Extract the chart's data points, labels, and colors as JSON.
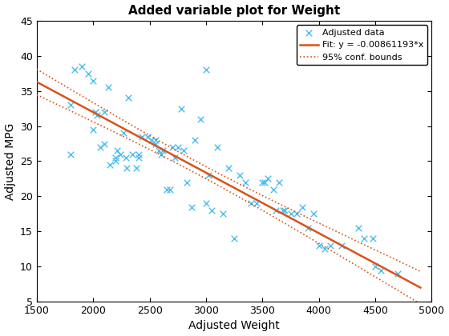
{
  "title": "Added variable plot for Weight",
  "xlabel": "Adjusted Weight",
  "ylabel": "Adjusted MPG",
  "slope": -0.00861193,
  "intercept": 48.5,
  "xlim": [
    1500,
    5000
  ],
  "ylim": [
    5,
    45
  ],
  "xticks": [
    1500,
    2000,
    2500,
    3000,
    3500,
    4000,
    4500,
    5000
  ],
  "yticks": [
    5,
    10,
    15,
    20,
    25,
    30,
    35,
    40,
    45
  ],
  "scatter_color": "#4dbeee",
  "fit_color": "#d95319",
  "conf_color": "#d95319",
  "legend_label_scatter": "Adjusted data",
  "legend_label_fit": "Fit: y = -0.00861193*x",
  "legend_label_conf": "95% conf. bounds",
  "x_data": [
    1800,
    1800,
    1835,
    1900,
    1955,
    2000,
    2000,
    2020,
    2035,
    2060,
    2100,
    2100,
    2130,
    2150,
    2200,
    2200,
    2210,
    2240,
    2265,
    2290,
    2300,
    2310,
    2345,
    2380,
    2400,
    2400,
    2430,
    2480,
    2520,
    2550,
    2550,
    2580,
    2600,
    2620,
    2650,
    2680,
    2700,
    2720,
    2750,
    2780,
    2800,
    2830,
    2870,
    2900,
    2950,
    3000,
    3000,
    3020,
    3050,
    3100,
    3150,
    3200,
    3250,
    3300,
    3350,
    3400,
    3450,
    3500,
    3520,
    3550,
    3600,
    3620,
    3650,
    3680,
    3700,
    3750,
    3800,
    3850,
    3900,
    3950,
    4000,
    4050,
    4100,
    4200,
    4350,
    4400,
    4480,
    4500,
    4550,
    4700
  ],
  "y_data": [
    33.0,
    26.0,
    38.0,
    38.5,
    37.5,
    36.5,
    29.5,
    32.0,
    31.5,
    27.0,
    32.0,
    27.5,
    35.5,
    24.5,
    25.5,
    25.0,
    26.5,
    26.0,
    29.0,
    25.5,
    24.0,
    34.0,
    26.0,
    24.0,
    26.0,
    25.5,
    28.5,
    28.5,
    28.0,
    28.0,
    27.5,
    26.5,
    26.0,
    26.5,
    21.0,
    21.0,
    27.0,
    25.5,
    27.0,
    32.5,
    26.5,
    22.0,
    18.5,
    28.0,
    31.0,
    38.0,
    19.0,
    23.0,
    18.0,
    27.0,
    17.5,
    24.0,
    14.0,
    23.0,
    22.0,
    19.0,
    19.0,
    22.0,
    22.0,
    22.5,
    21.0,
    18.0,
    22.0,
    18.0,
    18.0,
    17.5,
    17.5,
    18.5,
    15.5,
    17.5,
    13.0,
    12.5,
    13.0,
    13.0,
    15.5,
    14.0,
    14.0,
    10.0,
    9.5,
    9.0
  ]
}
